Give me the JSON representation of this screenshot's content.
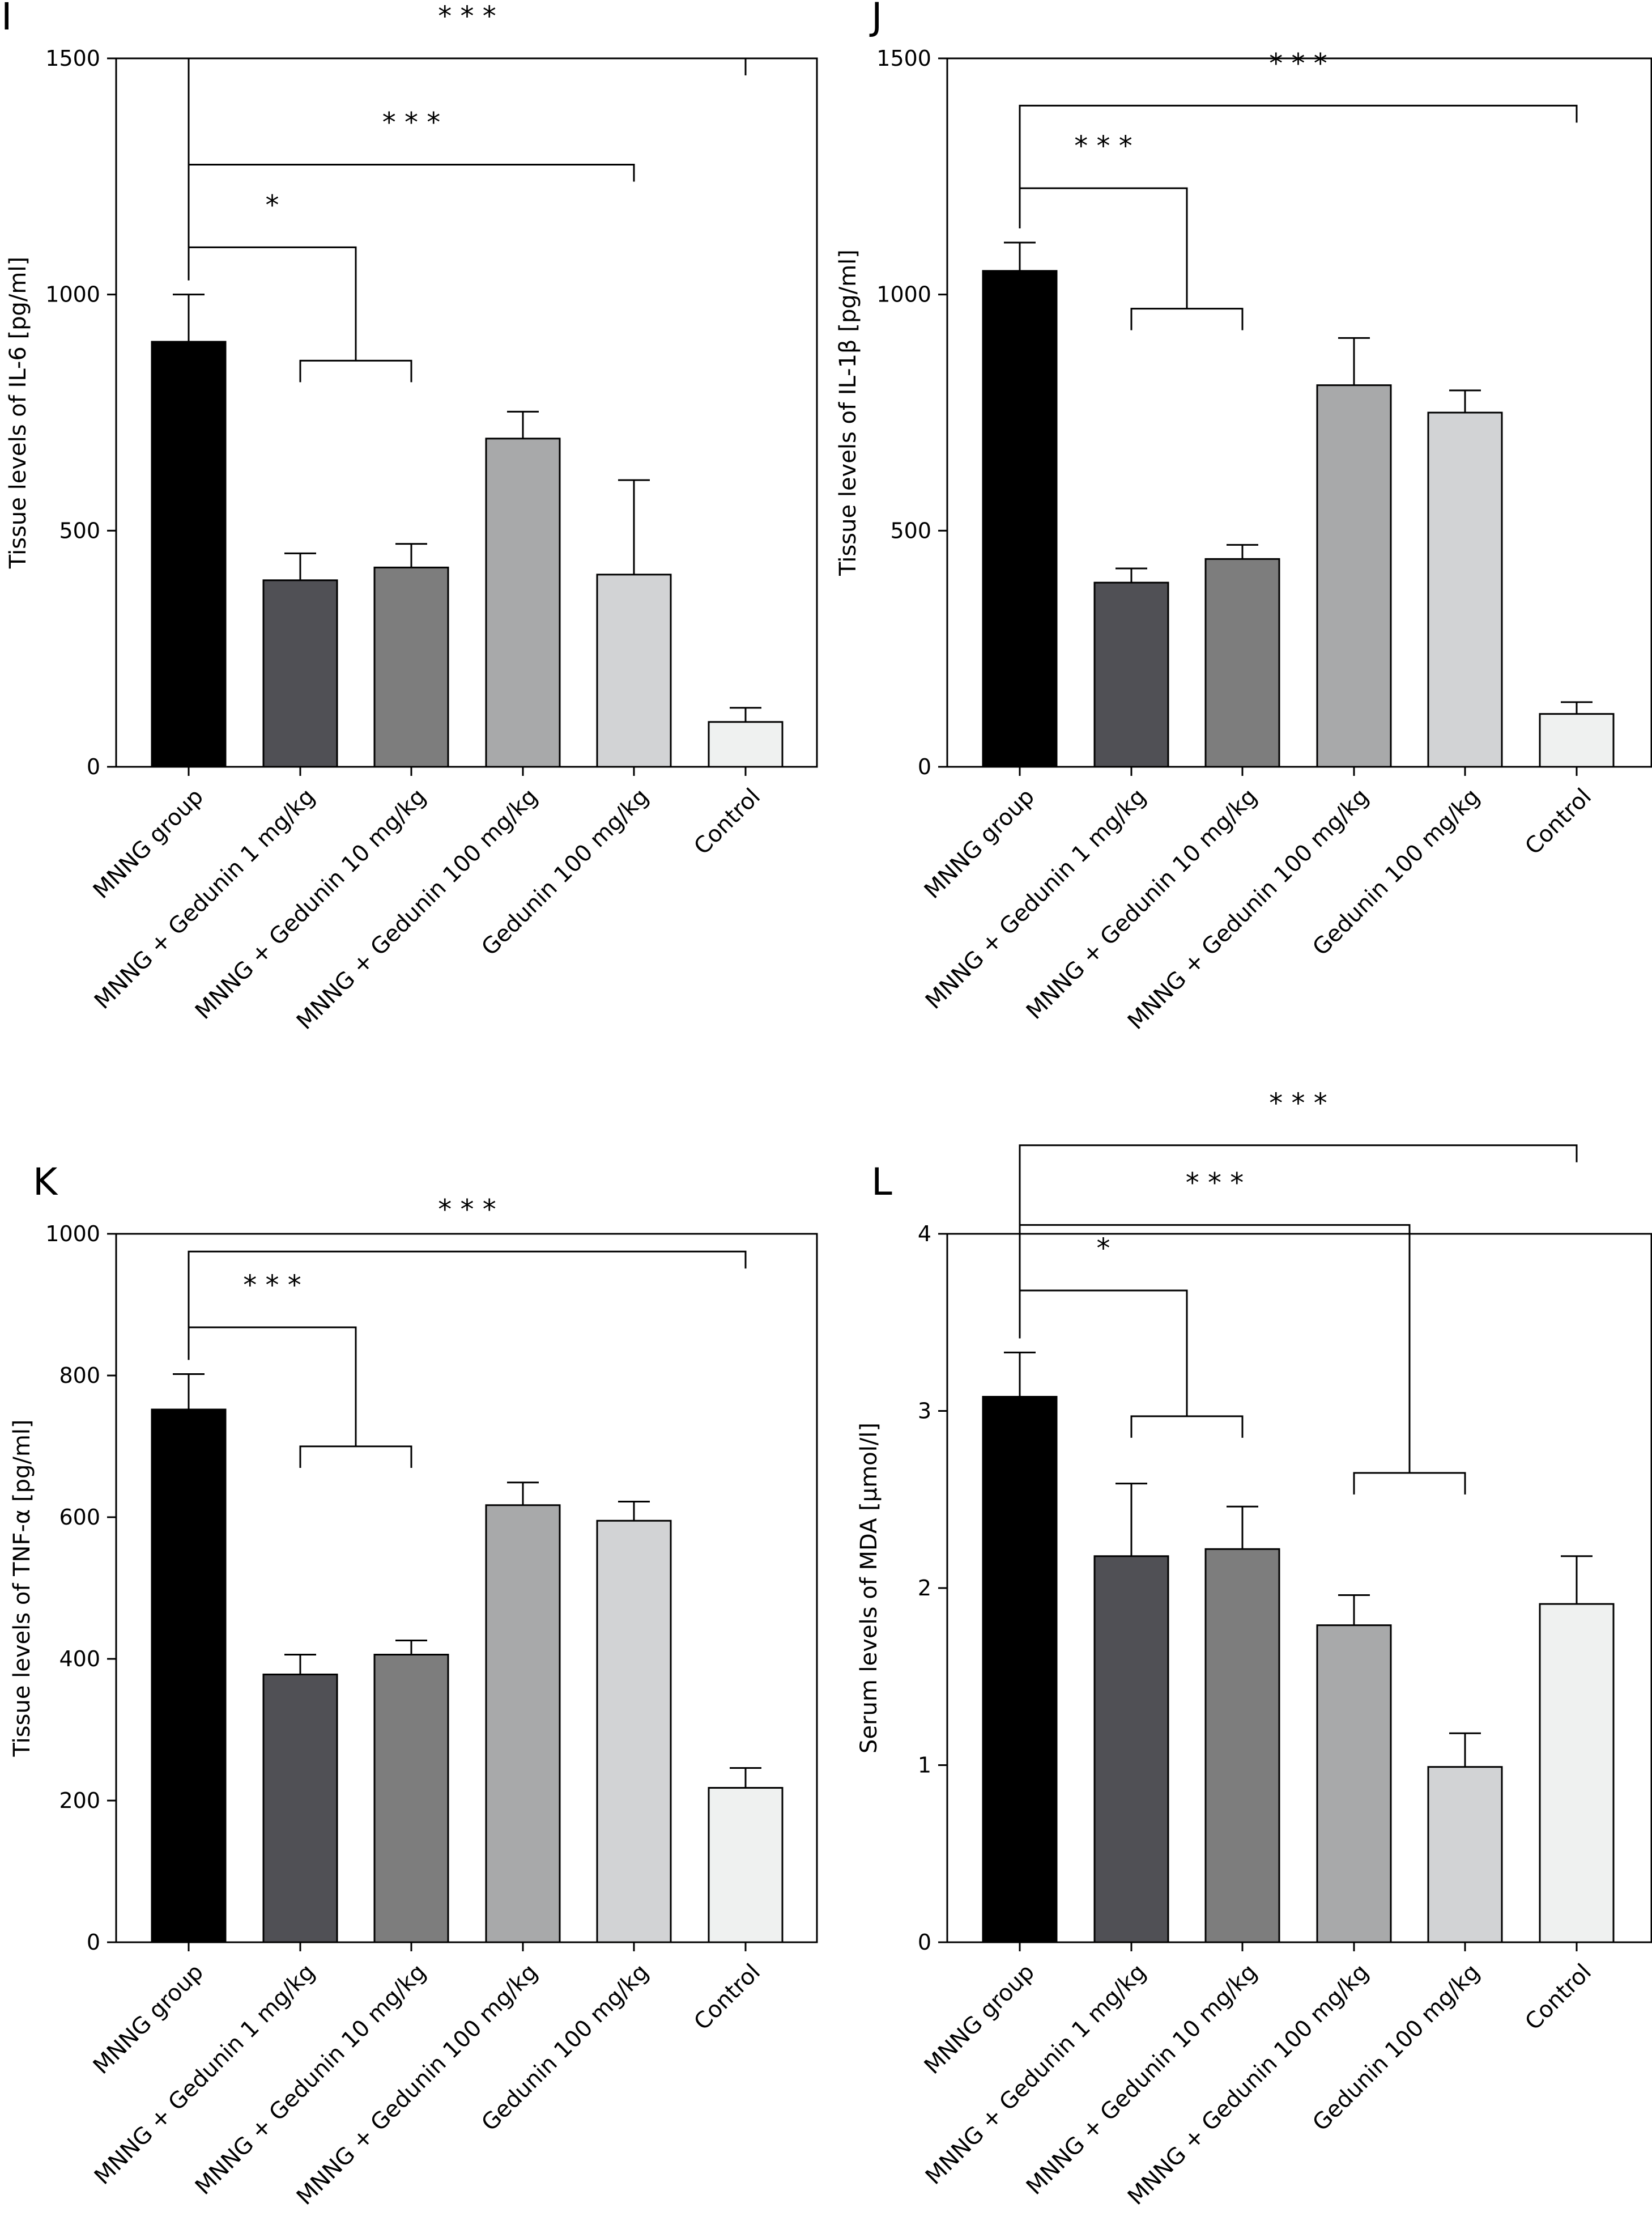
{
  "figure": {
    "categories": [
      "MNNG group",
      "MNNG + Gedunin 1 mg/kg",
      "MNNG + Gedunin 10 mg/kg",
      "MNNG + Gedunin 100 mg/kg",
      "Gedunin 100 mg/kg",
      "Control"
    ],
    "bar_colors": [
      "#000000",
      "#505055",
      "#7d7d7d",
      "#a8a9aa",
      "#d2d3d5",
      "#eff1f0"
    ]
  },
  "chart_data": [
    {
      "type": "bar",
      "panel_label": "I",
      "ylabel": "Tissue levels of IL-6 [pg/ml]",
      "ylim": [
        0,
        1500
      ],
      "yticks": [
        0,
        500,
        1000,
        1500
      ],
      "categories": [
        "MNNG group",
        "MNNG + Gedunin 1 mg/kg",
        "MNNG + Gedunin 10 mg/kg",
        "MNNG + Gedunin 100 mg/kg",
        "Gedunin 100 mg/kg",
        "Control"
      ],
      "values": [
        900,
        395,
        422,
        695,
        407,
        95
      ],
      "errors": [
        100,
        57,
        50,
        57,
        200,
        30
      ],
      "significance": [
        {
          "label": "* * *",
          "from": 0,
          "to": [
            5
          ],
          "level": 1500
        },
        {
          "label": "* * *",
          "from": 0,
          "to": [
            4
          ],
          "level": 1275
        },
        {
          "label": "*",
          "from": 0,
          "to": [
            1,
            2
          ],
          "level": 1100,
          "group_level": 860
        }
      ]
    },
    {
      "type": "bar",
      "panel_label": "J",
      "ylabel": "Tissue levels of IL-1β [pg/ml]",
      "ylim": [
        0,
        1500
      ],
      "yticks": [
        0,
        500,
        1000,
        1500
      ],
      "categories": [
        "MNNG group",
        "MNNG + Gedunin 1 mg/kg",
        "MNNG + Gedunin 10 mg/kg",
        "MNNG + Gedunin 100 mg/kg",
        "Gedunin 100 mg/kg",
        "Control"
      ],
      "values": [
        1050,
        390,
        440,
        808,
        750,
        112
      ],
      "errors": [
        60,
        30,
        30,
        100,
        47,
        25
      ],
      "significance": [
        {
          "label": "* * *",
          "from": 0,
          "to": [
            5
          ],
          "level": 1400
        },
        {
          "label": "* * *",
          "from": 0,
          "to": [
            1,
            2
          ],
          "level": 1225,
          "group_level": 970
        }
      ]
    },
    {
      "type": "bar",
      "panel_label": "K",
      "ylabel": "Tissue levels of TNF-α [pg/ml]",
      "ylim": [
        0,
        1000
      ],
      "yticks": [
        0,
        200,
        400,
        600,
        800,
        1000
      ],
      "categories": [
        "MNNG group",
        "MNNG + Gedunin 1 mg/kg",
        "MNNG + Gedunin 10 mg/kg",
        "MNNG + Gedunin 100 mg/kg",
        "Gedunin 100 mg/kg",
        "Control"
      ],
      "values": [
        752,
        378,
        406,
        617,
        595,
        218
      ],
      "errors": [
        50,
        28,
        20,
        32,
        27,
        28
      ],
      "significance": [
        {
          "label": "* * *",
          "from": 0,
          "to": [
            5
          ],
          "level": 975
        },
        {
          "label": "* * *",
          "from": 0,
          "to": [
            1,
            2
          ],
          "level": 868,
          "group_level": 700
        }
      ]
    },
    {
      "type": "bar",
      "panel_label": "L",
      "ylabel": "Serum levels of MDA [µmol/l]",
      "ylim": [
        0,
        4
      ],
      "yticks": [
        0,
        1,
        2,
        3,
        4
      ],
      "categories": [
        "MNNG group",
        "MNNG + Gedunin 1 mg/kg",
        "MNNG + Gedunin 10 mg/kg",
        "MNNG + Gedunin 100 mg/kg",
        "Gedunin 100 mg/kg",
        "Control"
      ],
      "values": [
        3.08,
        2.18,
        2.22,
        1.79,
        0.99,
        1.91
      ],
      "errors": [
        0.25,
        0.41,
        0.24,
        0.17,
        0.19,
        0.27
      ],
      "significance": [
        {
          "label": "* * *",
          "from": 0,
          "to": [
            5
          ],
          "level": 4.5
        },
        {
          "label": "* * *",
          "from": 0,
          "to": [
            3,
            4
          ],
          "level": 4.05,
          "group_level": 2.65
        },
        {
          "label": "*",
          "from": 0,
          "to": [
            1,
            2
          ],
          "level": 3.68,
          "group_level": 2.97
        }
      ]
    }
  ]
}
